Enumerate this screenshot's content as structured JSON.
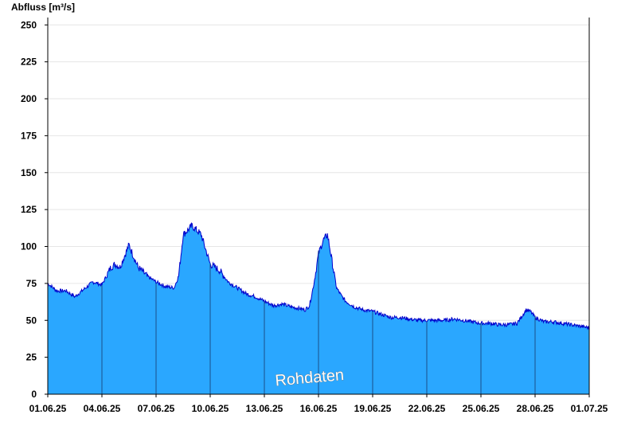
{
  "chart_data": {
    "type": "area",
    "title": "",
    "ylabel": "Abfluss [m³/s]",
    "xlabel": "",
    "ylim": [
      0,
      255
    ],
    "yticks": [
      0,
      25,
      50,
      75,
      100,
      125,
      150,
      175,
      200,
      225,
      250
    ],
    "xlim": [
      "01.06.25",
      "01.07.25"
    ],
    "xtick_labels": [
      "01.06.25",
      "04.06.25",
      "07.06.25",
      "10.06.25",
      "13.06.25",
      "16.06.25",
      "19.06.25",
      "22.06.25",
      "25.06.25",
      "28.06.25",
      "01.07.25"
    ],
    "grid": true,
    "annotation": "Rohdaten",
    "fill_color": "#2aa7ff",
    "line_color": "#0000cc",
    "series": [
      {
        "x": [
          "01.06.25 00:00",
          "01.06.25 12:00",
          "02.06.25 00:00",
          "02.06.25 12:00",
          "03.06.25 00:00",
          "03.06.25 12:00",
          "04.06.25 00:00",
          "04.06.25 12:00",
          "04.06.25 18:00",
          "05.06.25 00:00",
          "05.06.25 12:00",
          "06.06.25 00:00",
          "06.06.25 12:00",
          "07.06.25 00:00",
          "07.06.25 12:00",
          "08.06.25 00:00",
          "08.06.25 06:00",
          "08.06.25 12:00",
          "09.06.25 00:00",
          "09.06.25 12:00",
          "10.06.25 00:00",
          "10.06.25 12:00",
          "11.06.25 00:00",
          "11.06.25 12:00",
          "12.06.25 00:00",
          "12.06.25 12:00",
          "13.06.25 00:00",
          "13.06.25 12:00",
          "14.06.25 00:00",
          "14.06.25 12:00",
          "15.06.25 00:00",
          "15.06.25 06:00",
          "15.06.25 12:00",
          "15.06.25 18:00",
          "16.06.25 00:00",
          "16.06.25 06:00",
          "16.06.25 12:00",
          "16.06.25 18:00",
          "17.06.25 00:00",
          "17.06.25 06:00",
          "17.06.25 12:00",
          "18.06.25 00:00",
          "18.06.25 12:00",
          "19.06.25 00:00",
          "19.06.25 12:00",
          "20.06.25 00:00",
          "20.06.25 12:00",
          "21.06.25 00:00",
          "21.06.25 12:00",
          "22.06.25 00:00",
          "22.06.25 12:00",
          "23.06.25 00:00",
          "23.06.25 12:00",
          "24.06.25 00:00",
          "24.06.25 12:00",
          "25.06.25 00:00",
          "25.06.25 12:00",
          "26.06.25 00:00",
          "26.06.25 12:00",
          "27.06.25 00:00",
          "27.06.25 12:00",
          "27.06.25 18:00",
          "28.06.25 00:00",
          "28.06.25 12:00",
          "29.06.25 00:00",
          "29.06.25 12:00",
          "30.06.25 00:00",
          "30.06.25 12:00",
          "01.07.25 00:00"
        ],
        "y": [
          75,
          70,
          70,
          66,
          71,
          76,
          74,
          86,
          88,
          86,
          101,
          86,
          80,
          76,
          73,
          72,
          80,
          108,
          114,
          108,
          88,
          84,
          76,
          72,
          68,
          66,
          63,
          60,
          61,
          59,
          58,
          57,
          60,
          75,
          95,
          104,
          108,
          90,
          72,
          67,
          63,
          59,
          57,
          56,
          54,
          52,
          52,
          51,
          50,
          50,
          50,
          50,
          51,
          50,
          49,
          48,
          48,
          47,
          47,
          48,
          57,
          56,
          52,
          49,
          49,
          48,
          47,
          46,
          45
        ]
      }
    ]
  }
}
